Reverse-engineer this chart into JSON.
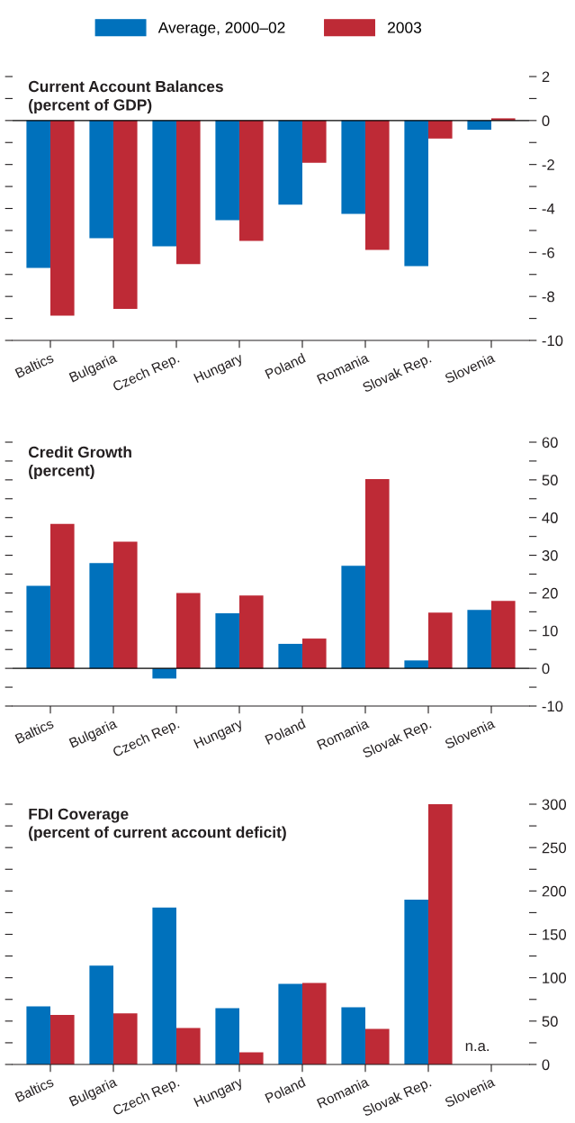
{
  "chart_data": [
    {
      "type": "bar",
      "title": "Current Account Balances",
      "subtitle": "(percent of GDP)",
      "categories": [
        "Baltics",
        "Bulgaria",
        "Czech Rep.",
        "Hungary",
        "Poland",
        "Romania",
        "Slovak Rep.",
        "Slovenia"
      ],
      "series": [
        {
          "name": "Average, 2000–02",
          "color": "#0071bc",
          "values": [
            -6.7,
            -5.35,
            -5.72,
            -4.53,
            -3.83,
            -4.25,
            -6.62,
            -0.42
          ]
        },
        {
          "name": "2003",
          "color": "#be2a36",
          "values": [
            -8.87,
            -8.57,
            -6.53,
            -5.47,
            -1.92,
            -5.88,
            -0.82,
            0.1
          ]
        }
      ],
      "ylim": [
        -10,
        2
      ],
      "yticks": [
        2,
        {
          "value": 1,
          "label": null
        },
        0,
        {
          "value": -1,
          "label": null
        },
        -2,
        {
          "value": -3,
          "label": null
        },
        -4,
        {
          "value": -5,
          "label": null
        },
        -6,
        {
          "value": -7,
          "label": null
        },
        -8,
        {
          "value": -9,
          "label": null
        },
        -10
      ],
      "ref_lines": [
        {
          "axis": "y",
          "value": 0,
          "label": null,
          "color": "#000000"
        }
      ],
      "legend": "top",
      "grid": false
    },
    {
      "type": "bar",
      "title": "Credit Growth",
      "subtitle": "(percent)",
      "categories": [
        "Baltics",
        "Bulgaria",
        "Czech Rep.",
        "Hungary",
        "Poland",
        "Romania",
        "Slovak Rep.",
        "Slovenia"
      ],
      "series": [
        {
          "color": "#0071bc",
          "values": [
            21.9,
            27.9,
            -2.7,
            14.6,
            6.5,
            27.2,
            2.1,
            15.5
          ]
        },
        {
          "color": "#be2a36",
          "values": [
            38.3,
            33.6,
            20.0,
            19.3,
            7.9,
            50.2,
            14.8,
            17.9
          ]
        }
      ],
      "ylim": [
        -10,
        60
      ],
      "yticks": [
        60,
        {
          "value": 55,
          "label": null
        },
        50,
        {
          "value": 45,
          "label": null
        },
        40,
        {
          "value": 35,
          "label": null
        },
        30,
        {
          "value": 25,
          "label": null
        },
        20,
        {
          "value": 15,
          "label": null
        },
        10,
        {
          "value": 5,
          "label": null
        },
        0,
        {
          "value": -5,
          "label": null
        },
        -10
      ],
      "ref_lines": [
        {
          "axis": "y",
          "value": 0,
          "label": null,
          "color": "#000000"
        }
      ],
      "grid": false
    },
    {
      "type": "bar",
      "title": "FDI Coverage",
      "subtitle": "(percent of current account deficit)",
      "categories": [
        "Baltics",
        "Bulgaria",
        "Czech Rep.",
        "Hungary",
        "Poland",
        "Romania",
        "Slovak Rep.",
        "Slovenia"
      ],
      "series": [
        {
          "color": "#0071bc",
          "values": [
            67,
            114,
            181,
            65,
            93,
            66,
            190,
            null
          ]
        },
        {
          "color": "#be2a36",
          "values": [
            57,
            59,
            42,
            14,
            94,
            41,
            300,
            null
          ]
        }
      ],
      "ylim": [
        0,
        300
      ],
      "yticks": [
        300,
        {
          "value": 275,
          "label": null
        },
        250,
        {
          "value": 225,
          "label": null
        },
        200,
        {
          "value": 175,
          "label": null
        },
        150,
        {
          "value": 125,
          "label": null
        },
        100,
        {
          "value": 75,
          "label": null
        },
        50,
        {
          "value": 25,
          "label": null
        },
        0
      ],
      "annotations": [
        "n.a."
      ],
      "grid": false
    }
  ]
}
